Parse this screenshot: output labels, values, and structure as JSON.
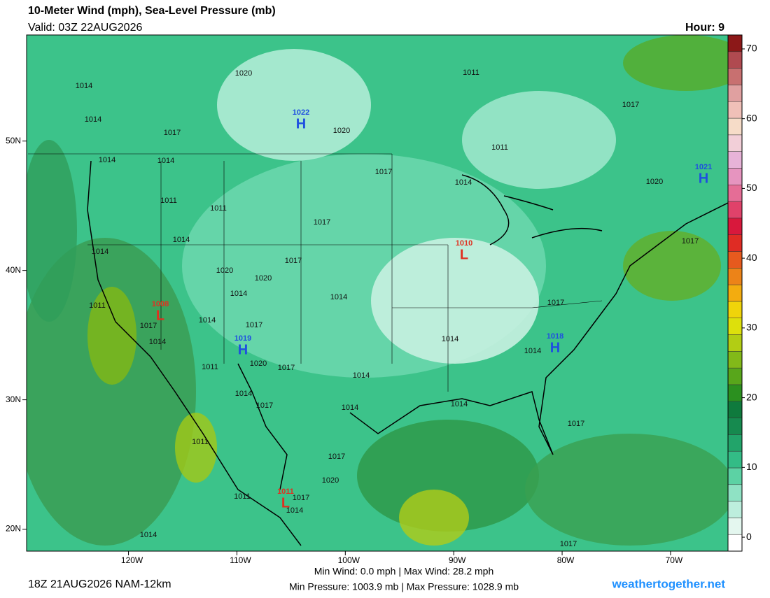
{
  "header": {
    "title": "10-Meter Wind (mph), Sea-Level Pressure (mb)",
    "valid": "Valid: 03Z 22AUG2026",
    "hour": "Hour: 9"
  },
  "map": {
    "xlim": [
      -129.4,
      -64.7
    ],
    "ylim": [
      18.3,
      58.2
    ],
    "xticks": [
      {
        "value": -120,
        "label": "120W"
      },
      {
        "value": -110,
        "label": "110W"
      },
      {
        "value": -100,
        "label": "100W"
      },
      {
        "value": -90,
        "label": "90W"
      },
      {
        "value": -80,
        "label": "80W"
      },
      {
        "value": -70,
        "label": "70W"
      }
    ],
    "yticks": [
      {
        "value": 50,
        "label": "50N"
      },
      {
        "value": 40,
        "label": "40N"
      },
      {
        "value": 30,
        "label": "30N"
      },
      {
        "value": 20,
        "label": "20N"
      }
    ],
    "isobar_labels": [
      1014,
      1014,
      1020,
      1020,
      1011,
      1017,
      1011,
      1017,
      1014,
      1014,
      1017,
      1014,
      1020,
      1011,
      1011,
      1017,
      1014,
      1014,
      1017,
      1020,
      1017,
      1020,
      1014,
      1014,
      1017,
      1011,
      1017,
      1014,
      1017,
      1014,
      1014,
      1014,
      1011,
      1020,
      1017,
      1014,
      1014,
      1017,
      1014,
      1014,
      1017,
      1011,
      1017,
      1020,
      1011,
      1017,
      1014,
      1014,
      1017
    ],
    "highs_lows": [
      {
        "letter": "H",
        "pressure": 1022
      },
      {
        "letter": "H",
        "pressure": 1021
      },
      {
        "letter": "L",
        "pressure": 1010
      },
      {
        "letter": "L",
        "pressure": 1008
      },
      {
        "letter": "H",
        "pressure": 1019
      },
      {
        "letter": "H",
        "pressure": 1018
      },
      {
        "letter": "L",
        "pressure": 1011
      }
    ]
  },
  "colorbar": {
    "lim": [
      -2,
      72
    ],
    "ticks": [
      0,
      10,
      20,
      30,
      40,
      50,
      60,
      70
    ],
    "colors": [
      "#ffffff",
      "#e4f7ef",
      "#bdeedd",
      "#8fe2c4",
      "#5cd2a4",
      "#33bc86",
      "#22a46a",
      "#168a4f",
      "#0f7a3d",
      "#2b901f",
      "#58a61b",
      "#82b919",
      "#b2cd14",
      "#dde00c",
      "#f0d40a",
      "#f3ac0f",
      "#ec8318",
      "#e65a1e",
      "#df2c24",
      "#d8183c",
      "#e0426a",
      "#e56d96",
      "#e694bf",
      "#e7b3d8",
      "#f2cfd8",
      "#f6dcc8",
      "#f0c0b8",
      "#e0a0a0",
      "#c87070",
      "#b04a50",
      "#8c1818"
    ]
  },
  "footer": {
    "winds": "Min Wind:   0.0 mph | Max Wind:  28.2 mph",
    "pressures": "Min Pressure: 1003.9 mb | Max Pressure: 1028.9 mb",
    "run": "18Z 21AUG2026 NAM-12km",
    "site": "weathertogether.net"
  }
}
